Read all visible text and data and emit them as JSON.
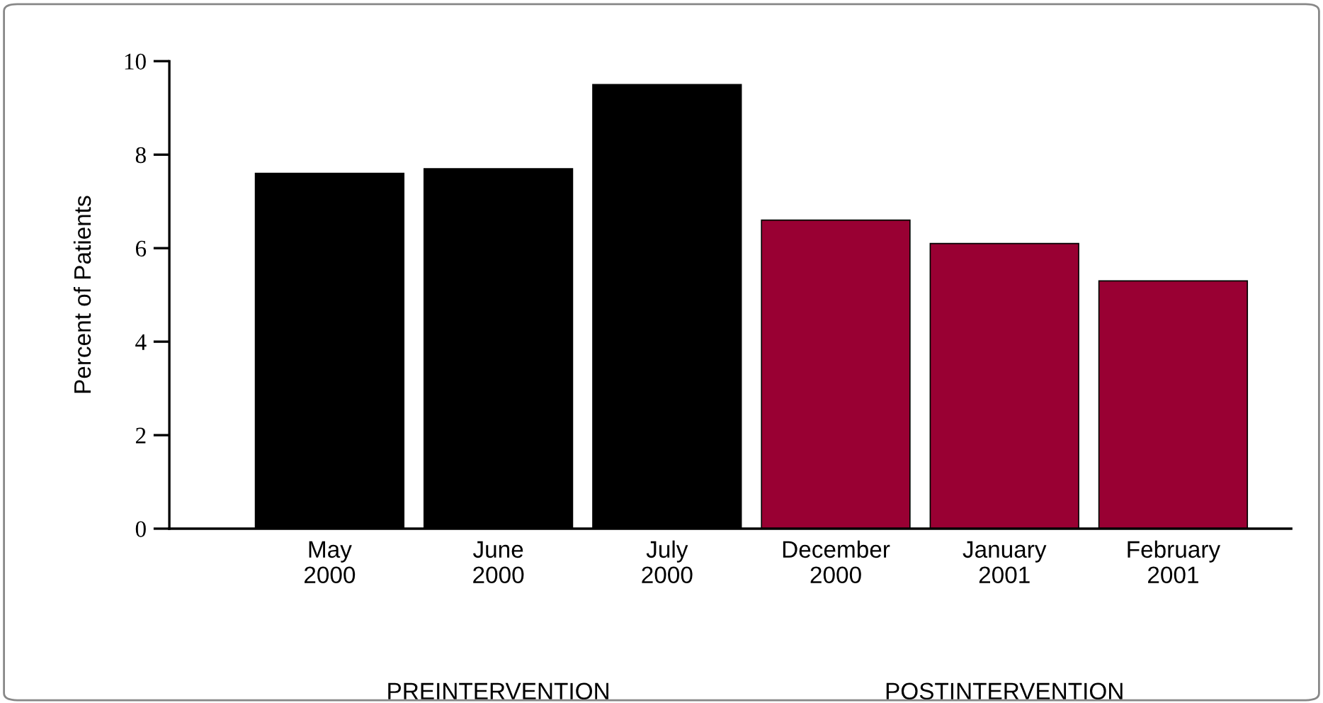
{
  "chart_data": {
    "type": "bar",
    "ylabel": "Percent of Patients",
    "categories": [
      "May\n2000",
      "June\n2000",
      "July\n2000",
      "December\n2000",
      "January\n2001",
      "February\n2001"
    ],
    "values": [
      7.6,
      7.7,
      9.5,
      6.6,
      6.1,
      5.3
    ],
    "colors": [
      "#000000",
      "#000000",
      "#000000",
      "#990033",
      "#990033",
      "#990033"
    ],
    "ylim": [
      0,
      10
    ],
    "yticks": [
      0,
      2,
      4,
      6,
      8,
      10
    ],
    "grid": false,
    "legend": false,
    "annotations": [
      "PREINTERVENTION",
      "POSTINTERVENTION"
    ]
  }
}
